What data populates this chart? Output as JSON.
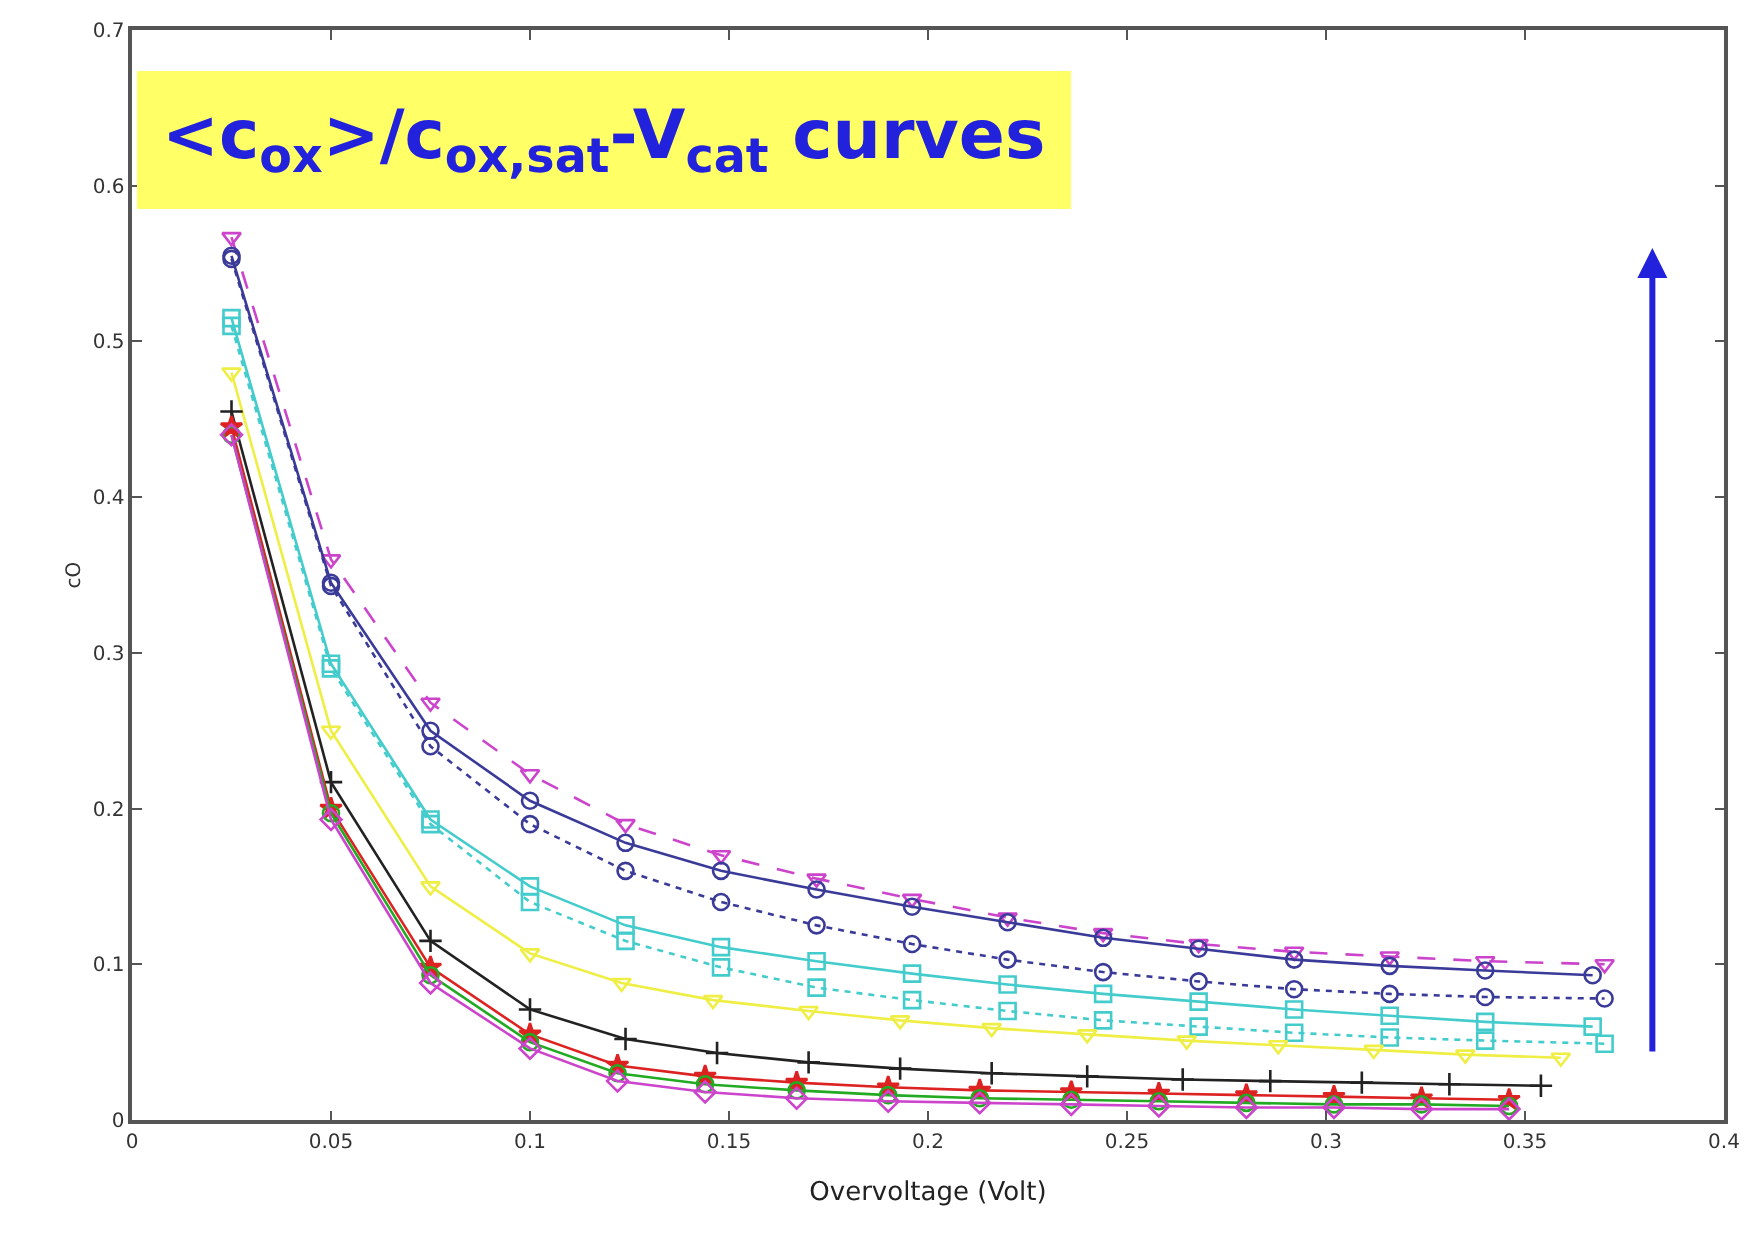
{
  "chart_data": {
    "type": "line",
    "title": "<c$_{ox}$>/c$_{ox,sat}$-V$_{cat}$ curves",
    "xlabel": "Overvoltage (Volt)",
    "ylabel": "cO",
    "xlim": [
      0,
      0.4
    ],
    "xticks": [
      0,
      0.05,
      0.1,
      0.15,
      0.2,
      0.25,
      0.3,
      0.35,
      0.4
    ],
    "ylim": [
      0,
      0.7
    ],
    "yticks": [
      0,
      0.1,
      0.2,
      0.3,
      0.4,
      0.5,
      0.6,
      0.7
    ],
    "series": [
      {
        "color": "#cc44cc",
        "marker": "triangle",
        "line_style": "dashed",
        "x": [
          0.025,
          0.05,
          0.075,
          0.1,
          0.124,
          0.148,
          0.172,
          0.196,
          0.22,
          0.244,
          0.268,
          0.292,
          0.316,
          0.34,
          0.37
        ],
        "values": [
          0.567,
          0.36,
          0.268,
          0.222,
          0.19,
          0.17,
          0.155,
          0.142,
          0.13,
          0.12,
          0.113,
          0.108,
          0.105,
          0.102,
          0.1
        ]
      },
      {
        "color": "#3a3a99",
        "marker": "circle",
        "line_style": "solid",
        "x": [
          0.025,
          0.05,
          0.075,
          0.1,
          0.124,
          0.148,
          0.172,
          0.196,
          0.22,
          0.244,
          0.268,
          0.292,
          0.316,
          0.34,
          0.367
        ],
        "values": [
          0.555,
          0.345,
          0.25,
          0.205,
          0.178,
          0.16,
          0.148,
          0.137,
          0.127,
          0.117,
          0.11,
          0.103,
          0.099,
          0.096,
          0.093
        ]
      },
      {
        "color": "#3a3a99",
        "marker": "circle",
        "line_style": "dotted",
        "x": [
          0.025,
          0.05,
          0.075,
          0.1,
          0.124,
          0.148,
          0.172,
          0.196,
          0.22,
          0.244,
          0.268,
          0.292,
          0.316,
          0.34,
          0.37
        ],
        "values": [
          0.553,
          0.343,
          0.24,
          0.19,
          0.16,
          0.14,
          0.125,
          0.113,
          0.103,
          0.095,
          0.089,
          0.084,
          0.081,
          0.079,
          0.078
        ]
      },
      {
        "color": "#44cccc",
        "marker": "square",
        "line_style": "solid",
        "x": [
          0.025,
          0.05,
          0.075,
          0.1,
          0.124,
          0.148,
          0.172,
          0.196,
          0.22,
          0.244,
          0.268,
          0.292,
          0.316,
          0.34,
          0.367
        ],
        "values": [
          0.515,
          0.293,
          0.193,
          0.15,
          0.125,
          0.111,
          0.102,
          0.094,
          0.087,
          0.081,
          0.076,
          0.071,
          0.067,
          0.063,
          0.06
        ]
      },
      {
        "color": "#44cccc",
        "marker": "square",
        "line_style": "dotted",
        "x": [
          0.025,
          0.05,
          0.075,
          0.1,
          0.124,
          0.148,
          0.172,
          0.196,
          0.22,
          0.244,
          0.268,
          0.292,
          0.316,
          0.34,
          0.37
        ],
        "values": [
          0.51,
          0.29,
          0.19,
          0.14,
          0.115,
          0.098,
          0.085,
          0.077,
          0.07,
          0.064,
          0.06,
          0.056,
          0.053,
          0.051,
          0.049
        ]
      },
      {
        "color": "#eeee44",
        "marker": "triangle",
        "line_style": "solid",
        "x": [
          0.025,
          0.05,
          0.075,
          0.1,
          0.123,
          0.146,
          0.17,
          0.193,
          0.216,
          0.24,
          0.265,
          0.288,
          0.312,
          0.335,
          0.359
        ],
        "values": [
          0.48,
          0.25,
          0.15,
          0.107,
          0.088,
          0.077,
          0.07,
          0.064,
          0.059,
          0.055,
          0.051,
          0.048,
          0.045,
          0.042,
          0.04
        ]
      },
      {
        "color": "#222222",
        "marker": "cross",
        "line_style": "solid",
        "x": [
          0.025,
          0.05,
          0.075,
          0.1,
          0.124,
          0.147,
          0.17,
          0.193,
          0.216,
          0.24,
          0.264,
          0.286,
          0.309,
          0.331,
          0.354
        ],
        "values": [
          0.455,
          0.217,
          0.115,
          0.071,
          0.052,
          0.043,
          0.037,
          0.033,
          0.03,
          0.028,
          0.026,
          0.025,
          0.024,
          0.023,
          0.022
        ]
      },
      {
        "color": "#dd2222",
        "marker": "star",
        "line_style": "solid",
        "x": [
          0.025,
          0.05,
          0.075,
          0.1,
          0.122,
          0.144,
          0.167,
          0.19,
          0.213,
          0.236,
          0.258,
          0.28,
          0.302,
          0.324,
          0.346
        ],
        "values": [
          0.445,
          0.2,
          0.098,
          0.055,
          0.035,
          0.028,
          0.024,
          0.021,
          0.019,
          0.018,
          0.017,
          0.016,
          0.015,
          0.014,
          0.013
        ]
      },
      {
        "color": "#22aa22",
        "marker": "circle",
        "line_style": "solid",
        "x": [
          0.025,
          0.05,
          0.075,
          0.1,
          0.122,
          0.144,
          0.167,
          0.19,
          0.213,
          0.236,
          0.258,
          0.28,
          0.302,
          0.324,
          0.346
        ],
        "values": [
          0.44,
          0.197,
          0.093,
          0.05,
          0.03,
          0.023,
          0.019,
          0.016,
          0.014,
          0.013,
          0.012,
          0.011,
          0.01,
          0.01,
          0.009
        ]
      },
      {
        "color": "#cc44cc",
        "marker": "diamond",
        "line_style": "solid",
        "x": [
          0.025,
          0.05,
          0.075,
          0.1,
          0.122,
          0.144,
          0.167,
          0.19,
          0.213,
          0.236,
          0.258,
          0.28,
          0.302,
          0.324,
          0.346
        ],
        "values": [
          0.44,
          0.193,
          0.088,
          0.046,
          0.025,
          0.018,
          0.014,
          0.012,
          0.011,
          0.01,
          0.009,
          0.008,
          0.008,
          0.007,
          0.007
        ]
      }
    ]
  }
}
